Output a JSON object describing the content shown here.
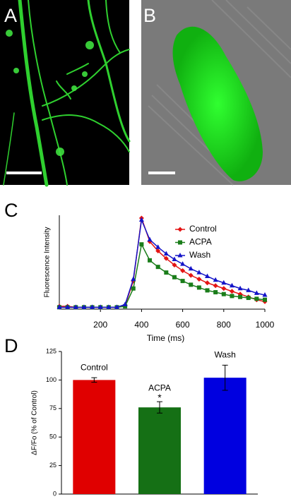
{
  "panels": [
    "A",
    "B",
    "C",
    "D"
  ],
  "chart_data": [
    {
      "type": "line",
      "xlabel": "Time (ms)",
      "ylabel": "Fluorescence Intensity",
      "x": [
        0,
        40,
        80,
        120,
        160,
        200,
        240,
        280,
        320,
        360,
        400,
        440,
        480,
        520,
        560,
        600,
        640,
        680,
        720,
        760,
        800,
        840,
        880,
        920,
        960,
        1000
      ],
      "xlim": [
        0,
        1000
      ],
      "xticks": [
        200,
        400,
        600,
        800,
        1000
      ],
      "ylim": [
        0,
        1
      ],
      "legend": "upper right",
      "series": [
        {
          "name": "Control",
          "color": "#e41414",
          "marker": "diamond",
          "values": [
            0.03,
            0.03,
            0.02,
            0.02,
            0.02,
            0.02,
            0.02,
            0.02,
            0.04,
            0.3,
            0.97,
            0.72,
            0.62,
            0.54,
            0.47,
            0.41,
            0.36,
            0.32,
            0.28,
            0.25,
            0.22,
            0.19,
            0.16,
            0.13,
            0.1,
            0.08
          ]
        },
        {
          "name": "ACPA",
          "color": "#1a7d1a",
          "marker": "square",
          "values": [
            0.02,
            0.02,
            0.02,
            0.02,
            0.02,
            0.02,
            0.02,
            0.02,
            0.03,
            0.22,
            0.69,
            0.52,
            0.45,
            0.39,
            0.34,
            0.3,
            0.26,
            0.23,
            0.2,
            0.18,
            0.16,
            0.14,
            0.13,
            0.12,
            0.11,
            0.1
          ]
        },
        {
          "name": "Wash",
          "color": "#1414c8",
          "marker": "triangle",
          "values": [
            0.02,
            0.02,
            0.02,
            0.02,
            0.02,
            0.02,
            0.02,
            0.02,
            0.05,
            0.32,
            0.95,
            0.74,
            0.66,
            0.59,
            0.53,
            0.48,
            0.43,
            0.39,
            0.35,
            0.31,
            0.28,
            0.25,
            0.22,
            0.2,
            0.17,
            0.15
          ]
        }
      ]
    },
    {
      "type": "bar",
      "ylabel": "ΔF/Fo (% of Control)",
      "categories": [
        "Control",
        "ACPA",
        "Wash"
      ],
      "values": [
        100,
        76,
        102
      ],
      "errors": [
        2,
        5,
        11
      ],
      "colors": [
        "#e00000",
        "#157015",
        "#0000e0"
      ],
      "annotations": [
        null,
        "*",
        null
      ],
      "ylim": [
        0,
        125
      ],
      "yticks": [
        0,
        25,
        50,
        75,
        100,
        125
      ]
    }
  ]
}
